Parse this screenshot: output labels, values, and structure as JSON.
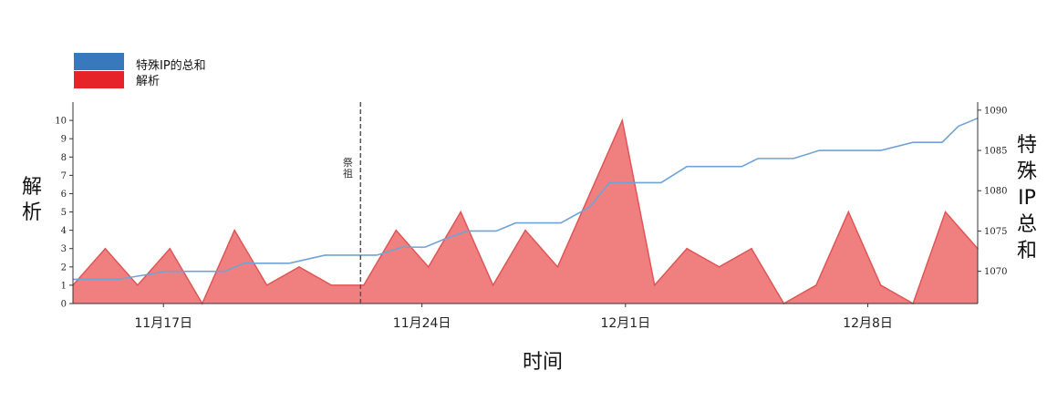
{
  "chart_data": {
    "type": "area",
    "xlabel": "时间",
    "x_tick_labels": [
      "11月17日",
      "11月24日",
      "12月1日",
      "12月8日"
    ],
    "y_left": {
      "label": "解析",
      "ticks": [
        "0",
        "1",
        "2",
        "3",
        "4",
        "5",
        "6",
        "7",
        "8",
        "9",
        "10"
      ],
      "range": [
        0,
        11
      ]
    },
    "y_right": {
      "label": "特殊IP总和",
      "ticks": [
        "1070",
        "1075",
        "1080",
        "1085",
        "1090"
      ],
      "range": [
        1066,
        1091
      ]
    },
    "legend": [
      {
        "label": "特殊IP的总和",
        "color": "#3a78bd"
      },
      {
        "label": "解析",
        "color": "#e52328"
      }
    ],
    "annotation": {
      "text": "祭祖"
    },
    "series": [
      {
        "name": "解析",
        "axis": "left",
        "color": "#f08080",
        "stroke": "#e05555",
        "x": [
          0,
          1,
          2,
          3,
          4,
          5,
          6,
          7,
          8,
          9,
          10,
          11,
          12,
          13,
          14,
          15,
          16,
          17,
          18,
          19,
          20,
          21,
          22,
          23,
          24,
          25,
          26,
          27,
          28
        ],
        "values": [
          1,
          3,
          1,
          3,
          0,
          4,
          1,
          2,
          1,
          1,
          4,
          2,
          5,
          1,
          4,
          2,
          6,
          10,
          1,
          3,
          2,
          3,
          0,
          1,
          5,
          1,
          0,
          5,
          3
        ]
      },
      {
        "name": "特殊IP的总和",
        "axis": "right",
        "color": "#6fa3d6",
        "x": [
          0,
          0.5,
          1.4,
          2.9,
          3.7,
          4.7,
          5.3,
          6.2,
          6.7,
          7.8,
          8.4,
          8.8,
          9.4,
          10.2,
          10.9,
          11.5,
          12.2,
          13.1,
          13.7,
          14.3,
          15.1,
          16.0,
          16.6,
          17.1,
          17.7,
          18.2,
          19.0,
          19.7,
          20.7,
          21.2,
          22.3,
          23.1,
          23.9,
          24.3,
          25.0,
          26.0,
          26.4,
          26.9,
          27.4,
          28.0
        ],
        "values": [
          1069,
          1069,
          1069,
          1070,
          1070,
          1070,
          1071,
          1071,
          1071,
          1072,
          1072,
          1072,
          1072,
          1073,
          1073,
          1074,
          1075,
          1075,
          1076,
          1076,
          1076,
          1078,
          1081,
          1081,
          1081,
          1081,
          1083,
          1083,
          1083,
          1084,
          1084,
          1085,
          1085,
          1085,
          1085,
          1086,
          1086,
          1086,
          1088,
          1089
        ]
      }
    ],
    "x_tick_positions": [
      2.8,
      10.8,
      17.1,
      24.6
    ],
    "annotation_x": 8.9,
    "grid": false,
    "legend_position": "top-left"
  }
}
